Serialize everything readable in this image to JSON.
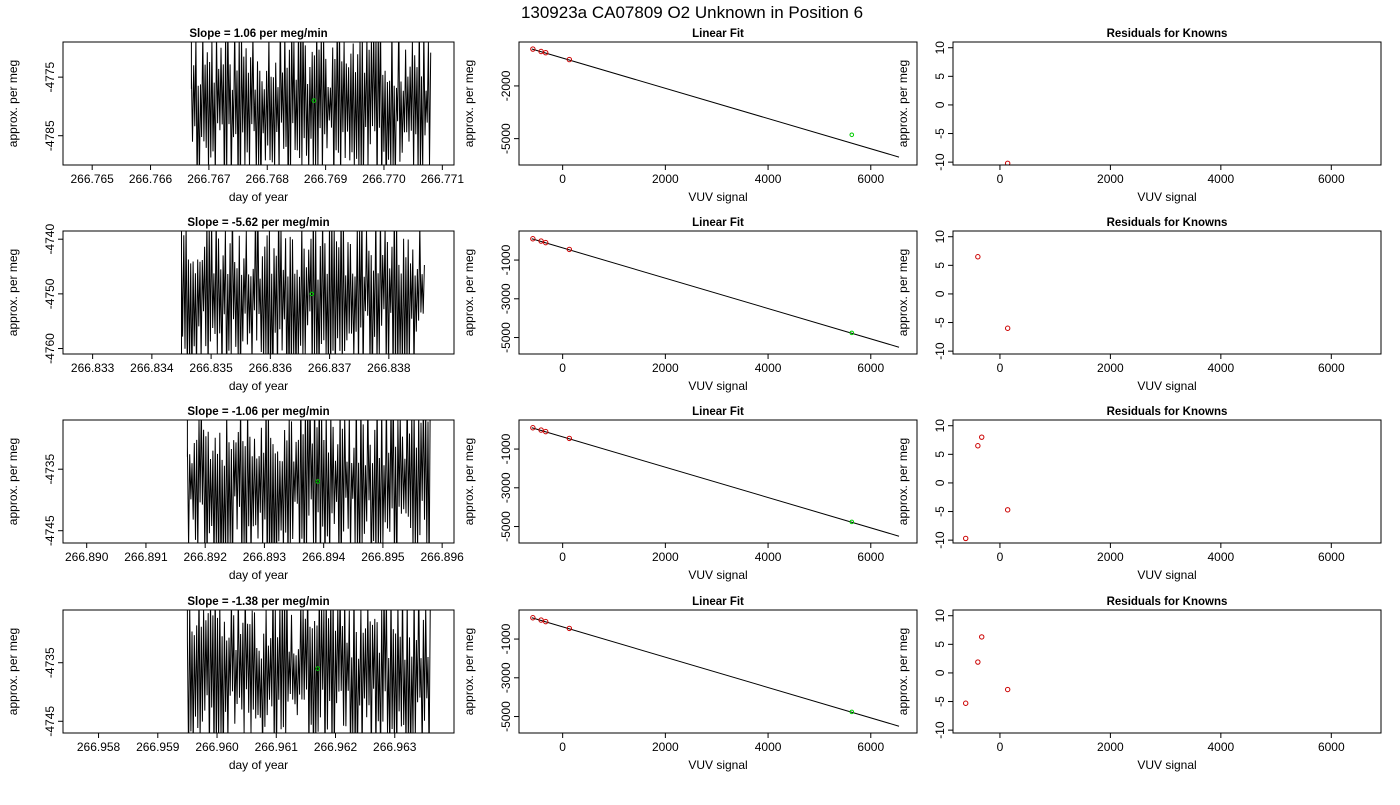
{
  "page_title": "130923a      CA07809   O2 Unknown in Position  6",
  "colors": {
    "trace": "#000000",
    "unknown_point": "#00cc00",
    "known_point": "#cc0000",
    "axis": "#000000"
  },
  "chart_data": [
    {
      "type": "line",
      "row": 0,
      "panel": "time",
      "title": "Slope =  1.06  per meg/min",
      "xlabel": "day of year",
      "ylabel": "approx. per meg",
      "xlim": [
        266.7645,
        266.7712
      ],
      "ylim": [
        -4790,
        -4769
      ],
      "xticks": [
        "266.765",
        "266.766",
        "266.767",
        "266.768",
        "266.769",
        "266.770",
        "266.771"
      ],
      "xtick_values": [
        266.765,
        266.766,
        266.767,
        266.768,
        266.769,
        266.77,
        266.771
      ],
      "yticks": [
        "-4785",
        "-4775"
      ],
      "ytick_values": [
        -4785,
        -4775
      ],
      "trace": {
        "x_start": 266.7667,
        "x_end": 266.7708,
        "y_mid": -4780,
        "amplitude": 12,
        "seed": 11,
        "lead_x": 266.7667,
        "lead_y": [
          -4769,
          -4777
        ]
      },
      "unknown_point": {
        "x": 266.7688,
        "y": -4779
      }
    },
    {
      "type": "scatter",
      "row": 0,
      "panel": "fit",
      "title": "Linear Fit",
      "xlabel": "VUV signal",
      "ylabel": "approx. per meg",
      "xlim": [
        -850,
        6900
      ],
      "ylim": [
        -6500,
        500
      ],
      "xticks": [
        "0",
        "2000",
        "4000",
        "6000"
      ],
      "xtick_values": [
        0,
        2000,
        4000,
        6000
      ],
      "yticks": [
        "-5000",
        "-2000"
      ],
      "ytick_values": [
        -5000,
        -2000
      ],
      "line": {
        "x": [
          -600,
          6550
        ],
        "y": [
          100,
          -6050
        ]
      },
      "knowns": [
        {
          "x": -580,
          "y": 100
        },
        {
          "x": -420,
          "y": -40
        },
        {
          "x": -330,
          "y": -110
        },
        {
          "x": 130,
          "y": -500
        }
      ],
      "unknown_point": {
        "x": 5630,
        "y": -4780
      }
    },
    {
      "type": "scatter",
      "row": 0,
      "panel": "resid",
      "title": "Residuals for Knowns",
      "xlabel": "VUV signal",
      "ylabel": "approx. per meg",
      "xlim": [
        -850,
        6900
      ],
      "ylim": [
        -10.5,
        11
      ],
      "xticks": [
        "0",
        "2000",
        "4000",
        "6000"
      ],
      "xtick_values": [
        0,
        2000,
        4000,
        6000
      ],
      "yticks": [
        "-10",
        "-5",
        "0",
        "5",
        "10"
      ],
      "ytick_values": [
        -10,
        -5,
        0,
        5,
        10
      ],
      "points": [
        {
          "x": 140,
          "y": -10.2
        }
      ]
    },
    {
      "type": "line",
      "row": 1,
      "panel": "time",
      "title": "Slope =  -5.62  per meg/min",
      "xlabel": "day of year",
      "ylabel": "approx. per meg",
      "xlim": [
        266.8325,
        266.8391
      ],
      "ylim": [
        -4761,
        -4738.5
      ],
      "xticks": [
        "266.833",
        "266.834",
        "266.835",
        "266.836",
        "266.837",
        "266.838"
      ],
      "xtick_values": [
        266.833,
        266.834,
        266.835,
        266.836,
        266.837,
        266.838
      ],
      "yticks": [
        "-4760",
        "-4750",
        "-4740"
      ],
      "ytick_values": [
        -4760,
        -4750,
        -4740
      ],
      "trace": {
        "x_start": 266.8345,
        "x_end": 266.8386,
        "y_mid": -4750,
        "amplitude": 13,
        "seed": 23,
        "lead_x": 266.8345,
        "lead_y": [
          -4738.5,
          -4761
        ]
      },
      "unknown_point": {
        "x": 266.8367,
        "y": -4750
      }
    },
    {
      "type": "scatter",
      "row": 1,
      "panel": "fit",
      "title": "Linear Fit",
      "xlabel": "VUV signal",
      "ylabel": "approx. per meg",
      "xlim": [
        -850,
        6900
      ],
      "ylim": [
        -5850,
        500
      ],
      "xticks": [
        "0",
        "2000",
        "4000",
        "6000"
      ],
      "xtick_values": [
        0,
        2000,
        4000,
        6000
      ],
      "yticks": [
        "-5000",
        "-3000",
        "-1000"
      ],
      "ytick_values": [
        -5000,
        -3000,
        -1000
      ],
      "line": {
        "x": [
          -600,
          6550
        ],
        "y": [
          100,
          -5500
        ]
      },
      "knowns": [
        {
          "x": -580,
          "y": 100
        },
        {
          "x": -420,
          "y": -20
        },
        {
          "x": -330,
          "y": -100
        },
        {
          "x": 130,
          "y": -450
        }
      ],
      "unknown_point": {
        "x": 5630,
        "y": -4760
      }
    },
    {
      "type": "scatter",
      "row": 1,
      "panel": "resid",
      "title": "Residuals for Knowns",
      "xlabel": "VUV signal",
      "ylabel": "approx. per meg",
      "xlim": [
        -850,
        6900
      ],
      "ylim": [
        -10.5,
        11
      ],
      "xticks": [
        "0",
        "2000",
        "4000",
        "6000"
      ],
      "xtick_values": [
        0,
        2000,
        4000,
        6000
      ],
      "yticks": [
        "-10",
        "-5",
        "0",
        "5",
        "10"
      ],
      "ytick_values": [
        -10,
        -5,
        0,
        5,
        10
      ],
      "points": [
        {
          "x": -400,
          "y": 6.5
        },
        {
          "x": 140,
          "y": -6
        }
      ]
    },
    {
      "type": "line",
      "row": 2,
      "panel": "time",
      "title": "Slope =  -1.06  per meg/min",
      "xlabel": "day of year",
      "ylabel": "approx. per meg",
      "xlim": [
        266.8896,
        266.8962
      ],
      "ylim": [
        -4747,
        -4727
      ],
      "xticks": [
        "266.890",
        "266.891",
        "266.892",
        "266.893",
        "266.894",
        "266.895",
        "266.896"
      ],
      "xtick_values": [
        266.89,
        266.891,
        266.892,
        266.893,
        266.894,
        266.895,
        266.896
      ],
      "yticks": [
        "-4745",
        "-4735"
      ],
      "ytick_values": [
        -4745,
        -4735
      ],
      "trace": {
        "x_start": 266.8917,
        "x_end": 266.8958,
        "y_mid": -4737,
        "amplitude": 12,
        "seed": 37,
        "lead_x": 266.8917,
        "lead_y": [
          -4727,
          -4733
        ]
      },
      "unknown_point": {
        "x": 266.8939,
        "y": -4737
      }
    },
    {
      "type": "scatter",
      "row": 2,
      "panel": "fit",
      "title": "Linear Fit",
      "xlabel": "VUV signal",
      "ylabel": "approx. per meg",
      "xlim": [
        -850,
        6900
      ],
      "ylim": [
        -5850,
        500
      ],
      "xticks": [
        "0",
        "2000",
        "4000",
        "6000"
      ],
      "xtick_values": [
        0,
        2000,
        4000,
        6000
      ],
      "yticks": [
        "-5000",
        "-3000",
        "-1000"
      ],
      "ytick_values": [
        -5000,
        -3000,
        -1000
      ],
      "line": {
        "x": [
          -600,
          6550
        ],
        "y": [
          100,
          -5500
        ]
      },
      "knowns": [
        {
          "x": -580,
          "y": 100
        },
        {
          "x": -420,
          "y": -20
        },
        {
          "x": -330,
          "y": -100
        },
        {
          "x": 130,
          "y": -450
        }
      ],
      "unknown_point": {
        "x": 5630,
        "y": -4760
      }
    },
    {
      "type": "scatter",
      "row": 2,
      "panel": "resid",
      "title": "Residuals for Knowns",
      "xlabel": "VUV signal",
      "ylabel": "approx. per meg",
      "xlim": [
        -850,
        6900
      ],
      "ylim": [
        -10.5,
        11
      ],
      "xticks": [
        "0",
        "2000",
        "4000",
        "6000"
      ],
      "xtick_values": [
        0,
        2000,
        4000,
        6000
      ],
      "yticks": [
        "-10",
        "-5",
        "0",
        "5",
        "10"
      ],
      "ytick_values": [
        -10,
        -5,
        0,
        5,
        10
      ],
      "points": [
        {
          "x": -620,
          "y": -9.7
        },
        {
          "x": -400,
          "y": 6.5
        },
        {
          "x": -330,
          "y": 8
        },
        {
          "x": 140,
          "y": -4.7
        }
      ]
    },
    {
      "type": "line",
      "row": 3,
      "panel": "time",
      "title": "Slope =  -1.38  per meg/min",
      "xlabel": "day of year",
      "ylabel": "approx. per meg",
      "xlim": [
        266.9574,
        266.964
      ],
      "ylim": [
        -4747,
        -4726
      ],
      "xticks": [
        "266.958",
        "266.959",
        "266.960",
        "266.961",
        "266.962",
        "266.963"
      ],
      "xtick_values": [
        266.958,
        266.959,
        266.96,
        266.961,
        266.962,
        266.963
      ],
      "yticks": [
        "-4745",
        "-4735"
      ],
      "ytick_values": [
        -4745,
        -4735
      ],
      "trace": {
        "x_start": 266.9595,
        "x_end": 266.9636,
        "y_mid": -4737,
        "amplitude": 12,
        "seed": 51,
        "lead_x": 266.9595,
        "lead_y": [
          -4726,
          -4731
        ]
      },
      "unknown_point": {
        "x": 266.9617,
        "y": -4736
      }
    },
    {
      "type": "scatter",
      "row": 3,
      "panel": "fit",
      "title": "Linear Fit",
      "xlabel": "VUV signal",
      "ylabel": "approx. per meg",
      "xlim": [
        -850,
        6900
      ],
      "ylim": [
        -5850,
        500
      ],
      "xticks": [
        "0",
        "2000",
        "4000",
        "6000"
      ],
      "xtick_values": [
        0,
        2000,
        4000,
        6000
      ],
      "yticks": [
        "-5000",
        "-3000",
        "-1000"
      ],
      "ytick_values": [
        -5000,
        -3000,
        -1000
      ],
      "line": {
        "x": [
          -600,
          6550
        ],
        "y": [
          100,
          -5500
        ]
      },
      "knowns": [
        {
          "x": -580,
          "y": 100
        },
        {
          "x": -420,
          "y": -20
        },
        {
          "x": -330,
          "y": -100
        },
        {
          "x": 130,
          "y": -450
        }
      ],
      "unknown_point": {
        "x": 5630,
        "y": -4760
      }
    },
    {
      "type": "scatter",
      "row": 3,
      "panel": "resid",
      "title": "Residuals for Knowns",
      "xlabel": "VUV signal",
      "ylabel": "approx. per meg",
      "xlim": [
        -850,
        6900
      ],
      "ylim": [
        -10.5,
        11
      ],
      "xticks": [
        "0",
        "2000",
        "4000",
        "6000"
      ],
      "xtick_values": [
        0,
        2000,
        4000,
        6000
      ],
      "yticks": [
        "-10",
        "-5",
        "0",
        "5",
        "10"
      ],
      "ytick_values": [
        -10,
        -5,
        0,
        5,
        10
      ],
      "points": [
        {
          "x": -620,
          "y": -5.3
        },
        {
          "x": -400,
          "y": 1.9
        },
        {
          "x": -330,
          "y": 6.3
        },
        {
          "x": 140,
          "y": -2.9
        }
      ]
    }
  ]
}
